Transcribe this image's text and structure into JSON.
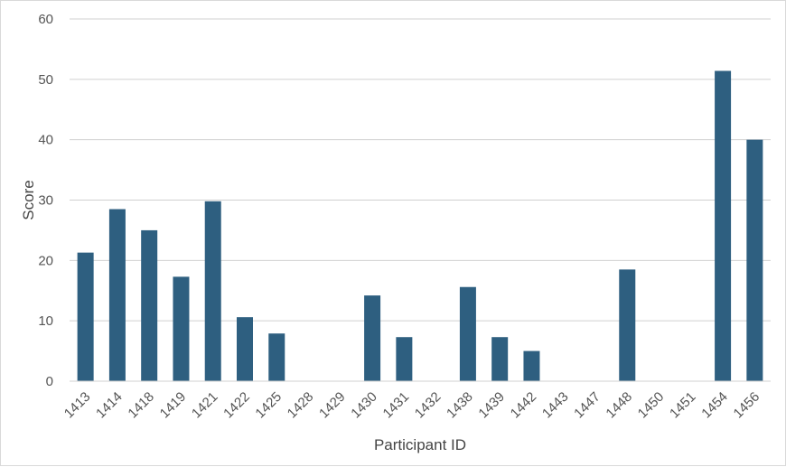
{
  "chart_data": {
    "type": "bar",
    "xlabel": "Participant ID",
    "ylabel": "Score",
    "ylim": [
      0,
      60
    ],
    "yticks": [
      0,
      10,
      20,
      30,
      40,
      50,
      60
    ],
    "grid": true,
    "bar_color": "#2e5f80",
    "categories": [
      "1413",
      "1414",
      "1418",
      "1419",
      "1421",
      "1422",
      "1425",
      "1428",
      "1429",
      "1430",
      "1431",
      "1432",
      "1438",
      "1439",
      "1442",
      "1443",
      "1447",
      "1448",
      "1450",
      "1451",
      "1454",
      "1456"
    ],
    "values": [
      21.3,
      28.5,
      25.0,
      17.3,
      29.8,
      10.6,
      7.9,
      0,
      0,
      14.2,
      7.3,
      0,
      15.6,
      7.3,
      5.0,
      0,
      0,
      18.5,
      0,
      0,
      51.4,
      40.0
    ]
  }
}
